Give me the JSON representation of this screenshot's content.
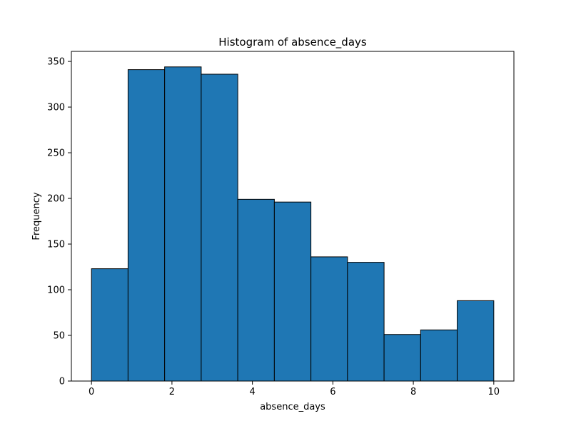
{
  "chart_data": {
    "type": "bar",
    "subtype": "histogram",
    "title": "Histogram of absence_days",
    "xlabel": "absence_days",
    "ylabel": "Frequency",
    "xlim": [
      -0.5,
      10.5
    ],
    "ylim": [
      0,
      361
    ],
    "xticks": [
      0,
      2,
      4,
      6,
      8,
      10
    ],
    "yticks": [
      0,
      50,
      100,
      150,
      200,
      250,
      300,
      350
    ],
    "bin_edges": [
      0,
      0.9091,
      1.8182,
      2.7273,
      3.6364,
      4.5455,
      5.4545,
      6.3636,
      7.2727,
      8.1818,
      9.0909,
      10
    ],
    "values": [
      123,
      341,
      344,
      336,
      199,
      196,
      136,
      130,
      51,
      56,
      88
    ],
    "bar_color": "#1f77b4",
    "edge_color": "#000000",
    "grid": false,
    "legend": "none"
  }
}
